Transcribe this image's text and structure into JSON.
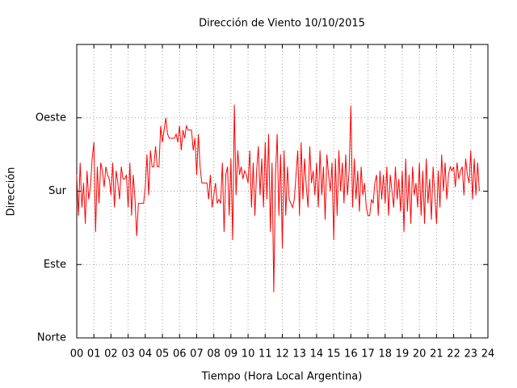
{
  "chart_data": {
    "type": "line",
    "title": "Dirección de Viento 10/10/2015",
    "xlabel": "Tiempo (Hora Local Argentina)",
    "ylabel": "Dirección",
    "xlim": [
      0,
      24
    ],
    "ylim": [
      0,
      360
    ],
    "xticks": [
      {
        "value": 0,
        "label": "00"
      },
      {
        "value": 1,
        "label": "01"
      },
      {
        "value": 2,
        "label": "02"
      },
      {
        "value": 3,
        "label": "03"
      },
      {
        "value": 4,
        "label": "04"
      },
      {
        "value": 5,
        "label": "05"
      },
      {
        "value": 6,
        "label": "06"
      },
      {
        "value": 7,
        "label": "07"
      },
      {
        "value": 8,
        "label": "08"
      },
      {
        "value": 9,
        "label": "09"
      },
      {
        "value": 10,
        "label": "10"
      },
      {
        "value": 11,
        "label": "11"
      },
      {
        "value": 12,
        "label": "12"
      },
      {
        "value": 13,
        "label": "13"
      },
      {
        "value": 14,
        "label": "14"
      },
      {
        "value": 15,
        "label": "15"
      },
      {
        "value": 16,
        "label": "16"
      },
      {
        "value": 17,
        "label": "17"
      },
      {
        "value": 18,
        "label": "18"
      },
      {
        "value": 19,
        "label": "19"
      },
      {
        "value": 20,
        "label": "20"
      },
      {
        "value": 21,
        "label": "21"
      },
      {
        "value": 22,
        "label": "22"
      },
      {
        "value": 23,
        "label": "23"
      },
      {
        "value": 24,
        "label": "24"
      }
    ],
    "yticks": [
      {
        "value": 0,
        "label": "Norte"
      },
      {
        "value": 90,
        "label": "Este"
      },
      {
        "value": 180,
        "label": "Sur"
      },
      {
        "value": 270,
        "label": "Oeste"
      }
    ],
    "grid": true,
    "x": [
      0,
      0.1,
      0.2,
      0.3,
      0.4,
      0.5,
      0.6,
      0.7,
      0.8,
      0.9,
      1,
      1.1,
      1.2,
      1.3,
      1.4,
      1.5,
      1.6,
      1.7,
      1.8,
      1.9,
      2,
      2.1,
      2.2,
      2.3,
      2.4,
      2.5,
      2.6,
      2.7,
      2.8,
      2.9,
      3,
      3.1,
      3.2,
      3.3,
      3.4,
      3.5,
      3.6,
      3.7,
      3.8,
      3.9,
      4,
      4.1,
      4.2,
      4.3,
      4.4,
      4.5,
      4.6,
      4.7,
      4.8,
      4.9,
      5,
      5.1,
      5.2,
      5.3,
      5.4,
      5.5,
      5.6,
      5.7,
      5.8,
      5.9,
      6,
      6.1,
      6.2,
      6.3,
      6.4,
      6.5,
      6.6,
      6.7,
      6.8,
      6.9,
      7,
      7.1,
      7.2,
      7.3,
      7.4,
      7.5,
      7.6,
      7.7,
      7.8,
      7.9,
      8,
      8.1,
      8.2,
      8.3,
      8.4,
      8.5,
      8.6,
      8.7,
      8.8,
      8.9,
      9,
      9.1,
      9.2,
      9.3,
      9.4,
      9.5,
      9.6,
      9.7,
      9.8,
      9.9,
      10,
      10.1,
      10.2,
      10.3,
      10.4,
      10.5,
      10.6,
      10.7,
      10.8,
      10.9,
      11,
      11.1,
      11.2,
      11.3,
      11.4,
      11.5,
      11.6,
      11.7,
      11.8,
      11.9,
      12,
      12.1,
      12.2,
      12.3,
      12.4,
      12.5,
      12.6,
      12.7,
      12.8,
      12.9,
      13,
      13.1,
      13.2,
      13.3,
      13.4,
      13.5,
      13.6,
      13.7,
      13.8,
      13.9,
      14,
      14.1,
      14.2,
      14.3,
      14.4,
      14.5,
      14.6,
      14.7,
      14.8,
      14.9,
      15,
      15.1,
      15.2,
      15.3,
      15.4,
      15.5,
      15.6,
      15.7,
      15.8,
      15.9,
      16,
      16.1,
      16.2,
      16.3,
      16.4,
      16.5,
      16.6,
      16.7,
      16.8,
      16.9,
      17,
      17.1,
      17.2,
      17.3,
      17.4,
      17.5,
      17.6,
      17.7,
      17.8,
      17.9,
      18,
      18.1,
      18.2,
      18.3,
      18.4,
      18.5,
      18.6,
      18.7,
      18.8,
      18.9,
      19,
      19.1,
      19.2,
      19.3,
      19.4,
      19.5,
      19.6,
      19.7,
      19.8,
      19.9,
      20,
      20.1,
      20.2,
      20.3,
      20.4,
      20.5,
      20.6,
      20.7,
      20.8,
      20.9,
      21,
      21.1,
      21.2,
      21.3,
      21.4,
      21.5,
      21.6,
      21.7,
      21.8,
      21.9,
      22,
      22.1,
      22.2,
      22.3,
      22.4,
      22.5,
      22.6,
      22.7,
      22.8,
      22.9,
      23,
      23.1,
      23.2,
      23.3,
      23.4,
      23.5
    ],
    "series": [
      {
        "color": "#ff0000",
        "values": [
          200,
          150,
          215,
          160,
          190,
          140,
          205,
          170,
          185,
          220,
          240,
          130,
          210,
          165,
          215,
          205,
          185,
          210,
          200,
          195,
          175,
          215,
          160,
          205,
          190,
          170,
          210,
          195,
          195,
          200,
          160,
          215,
          150,
          200,
          170,
          125,
          165,
          165,
          165,
          165,
          185,
          225,
          175,
          230,
          210,
          210,
          235,
          210,
          210,
          260,
          240,
          255,
          270,
          250,
          245,
          245,
          245,
          245,
          250,
          240,
          260,
          230,
          255,
          245,
          260,
          255,
          255,
          255,
          230,
          245,
          200,
          250,
          210,
          190,
          190,
          190,
          190,
          170,
          200,
          160,
          175,
          190,
          165,
          170,
          165,
          215,
          130,
          200,
          210,
          150,
          220,
          120,
          286,
          175,
          230,
          200,
          210,
          195,
          205,
          200,
          190,
          230,
          160,
          215,
          150,
          205,
          235,
          175,
          220,
          160,
          240,
          170,
          250,
          130,
          215,
          56,
          200,
          250,
          150,
          225,
          110,
          230,
          150,
          210,
          170,
          165,
          160,
          170,
          200,
          230,
          150,
          240,
          170,
          220,
          185,
          160,
          235,
          190,
          205,
          175,
          215,
          160,
          230,
          175,
          210,
          145,
          225,
          200,
          180,
          215,
          120,
          220,
          150,
          230,
          180,
          215,
          165,
          225,
          175,
          205,
          285,
          160,
          220,
          170,
          205,
          155,
          210,
          175,
          190,
          160,
          150,
          150,
          170,
          165,
          190,
          200,
          150,
          205,
          170,
          200,
          165,
          210,
          150,
          200,
          180,
          160,
          210,
          170,
          195,
          155,
          205,
          130,
          220,
          155,
          200,
          140,
          210,
          175,
          190,
          160,
          215,
          150,
          205,
          140,
          220,
          165,
          195,
          145,
          210,
          175,
          140,
          205,
          160,
          225,
          180,
          215,
          170,
          200,
          210,
          205,
          210,
          185,
          215,
          195,
          205,
          210,
          175,
          220,
          200,
          190,
          230,
          170,
          220,
          175,
          215,
          180
        ]
      }
    ]
  }
}
